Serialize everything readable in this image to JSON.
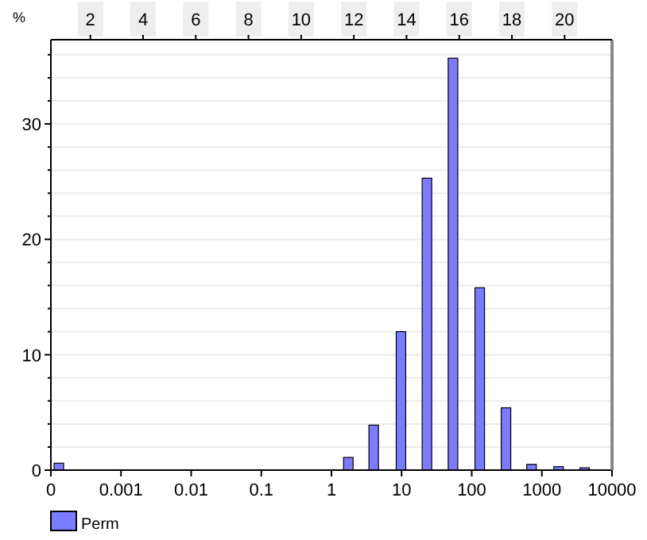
{
  "chart_data": {
    "type": "bar",
    "ylabel": "%",
    "x": [
      0.00013,
      1.74,
      4.0,
      9.8,
      23,
      54,
      130,
      308,
      713,
      1730,
      4070
    ],
    "series": [
      {
        "name": "Perm",
        "color": "#7b7bff",
        "values": [
          0.6,
          1.1,
          3.9,
          12.0,
          25.3,
          35.7,
          15.8,
          5.4,
          0.5,
          0.3,
          0.2
        ]
      }
    ],
    "log": "x",
    "xlim": [
      0.0001,
      10000
    ],
    "xticks": [
      {
        "value": 0.0001,
        "label": "0"
      },
      0.001,
      0.01,
      0.1,
      1,
      10,
      100,
      1000,
      10000
    ],
    "x2lim": [
      0.5,
      21.8
    ],
    "x2ticks": [
      2,
      4,
      6,
      8,
      10,
      12,
      14,
      16,
      18,
      20
    ],
    "ylim": [
      0,
      37.3
    ],
    "yticks": [
      0,
      {
        "value": 2,
        "label": null
      },
      {
        "value": 4,
        "label": null
      },
      {
        "value": 6,
        "label": null
      },
      {
        "value": 8,
        "label": null
      },
      10,
      {
        "value": 12,
        "label": null
      },
      {
        "value": 14,
        "label": null
      },
      {
        "value": 16,
        "label": null
      },
      {
        "value": 18,
        "label": null
      },
      20,
      {
        "value": 22,
        "label": null
      },
      {
        "value": 24,
        "label": null
      },
      {
        "value": 26,
        "label": null
      },
      {
        "value": 28,
        "label": null
      },
      30,
      {
        "value": 32,
        "label": null
      },
      {
        "value": 34,
        "label": null
      },
      {
        "value": 36,
        "label": null
      }
    ],
    "grid": "y",
    "legend": "bottom left"
  }
}
